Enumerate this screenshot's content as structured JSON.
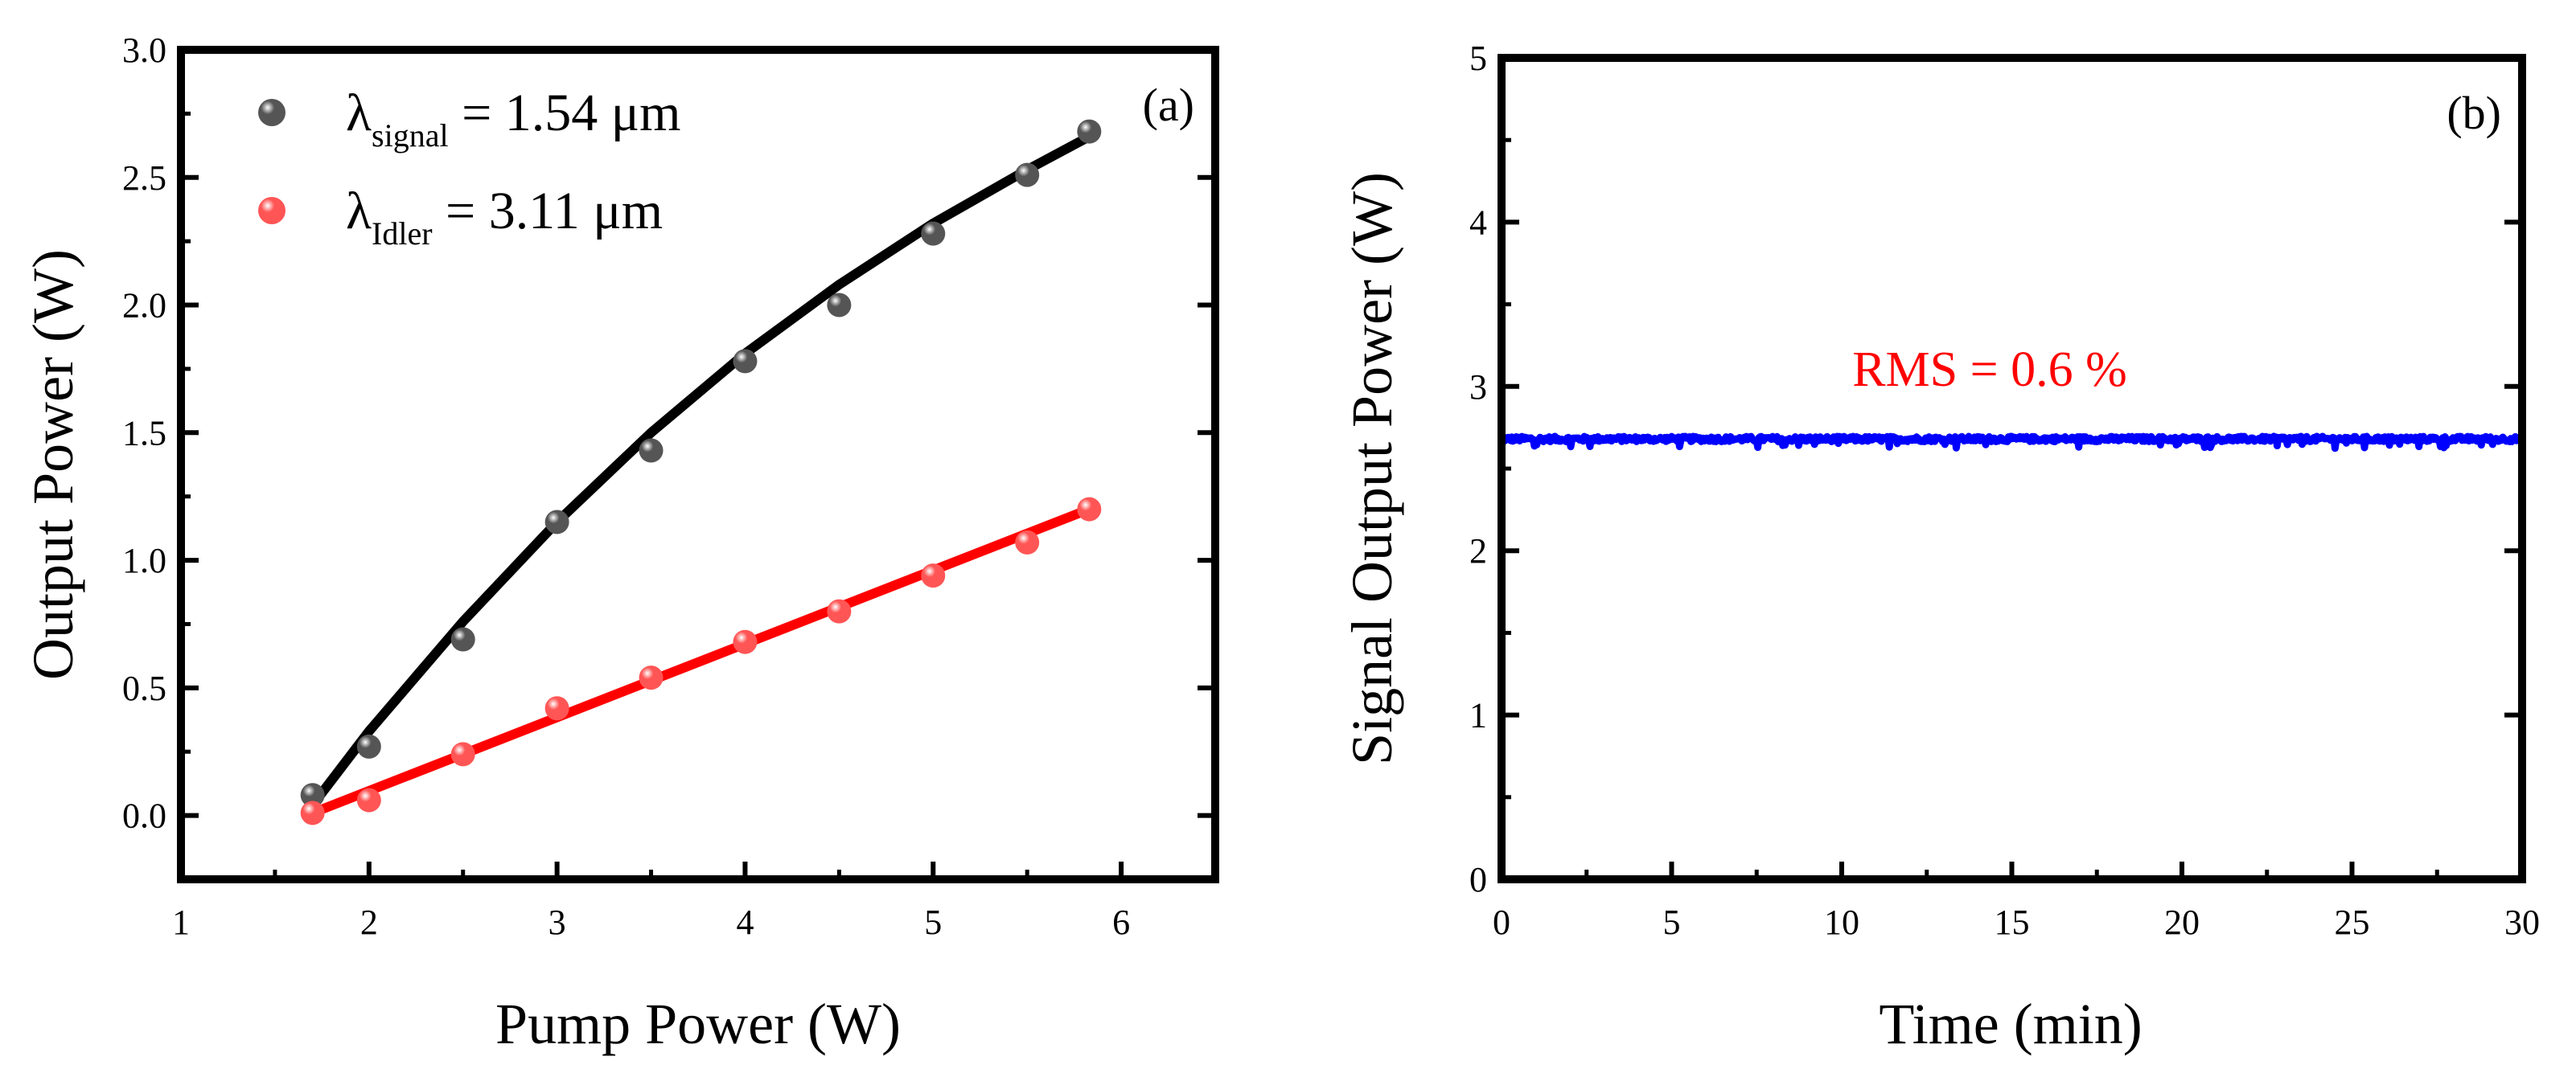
{
  "chart_data": [
    {
      "type": "scatter",
      "panel_label": "(a)",
      "xlabel": "Pump Power (W)",
      "ylabel": "Output Power (W)",
      "xlim": [
        1,
        6.5
      ],
      "ylim": [
        -0.25,
        3.0
      ],
      "xticks": [
        1,
        2,
        3,
        4,
        5,
        6
      ],
      "yticks": [
        0.0,
        0.5,
        1.0,
        1.5,
        2.0,
        2.5,
        3.0
      ],
      "xtick_labels": [
        "1",
        "2",
        "3",
        "4",
        "5",
        "6"
      ],
      "ytick_labels": [
        "0.0",
        "0.5",
        "1.0",
        "1.5",
        "2.0",
        "2.5",
        "3.0"
      ],
      "legend_position": "top-left",
      "series": [
        {
          "name": "λsignal = 1.54 μm",
          "legend": {
            "symbol": "λ",
            "subscript": "signal",
            "rest": " = 1.54 μm"
          },
          "color": "#000000",
          "marker_color": "#555555",
          "x": [
            1.7,
            2.0,
            2.5,
            3.0,
            3.5,
            4.0,
            4.5,
            5.0,
            5.5,
            5.83
          ],
          "y": [
            0.08,
            0.27,
            0.69,
            1.15,
            1.43,
            1.78,
            2.0,
            2.28,
            2.51,
            2.68
          ],
          "fit_x": [
            1.72,
            2.0,
            2.5,
            3.0,
            3.5,
            4.0,
            4.5,
            5.0,
            5.5,
            5.83
          ],
          "fit_y": [
            0.06,
            0.33,
            0.76,
            1.15,
            1.5,
            1.81,
            2.08,
            2.32,
            2.53,
            2.66
          ]
        },
        {
          "name": "λIdler = 3.11 μm",
          "legend": {
            "symbol": "λ",
            "subscript": "Idler",
            "rest": " = 3.11 μm"
          },
          "color": "#ff0000",
          "marker_color": "#ff5555",
          "x": [
            1.7,
            2.0,
            2.5,
            3.0,
            3.5,
            4.0,
            4.5,
            5.0,
            5.5,
            5.83
          ],
          "y": [
            0.01,
            0.06,
            0.24,
            0.42,
            0.54,
            0.68,
            0.8,
            0.94,
            1.07,
            1.2
          ],
          "fit_x": [
            1.7,
            5.83
          ],
          "fit_y": [
            0.01,
            1.2
          ]
        }
      ]
    },
    {
      "type": "line",
      "panel_label": "(b)",
      "xlabel": "Time (min)",
      "ylabel": "Signal Output Power (W)",
      "xlim": [
        0,
        30
      ],
      "ylim": [
        0,
        5
      ],
      "xticks": [
        0,
        5,
        10,
        15,
        20,
        25,
        30
      ],
      "yticks": [
        0,
        1,
        2,
        3,
        4,
        5
      ],
      "xtick_labels": [
        "0",
        "5",
        "10",
        "15",
        "20",
        "25",
        "30"
      ],
      "ytick_labels": [
        "0",
        "1",
        "2",
        "3",
        "4",
        "5"
      ],
      "annotation": "RMS = 0.6 %",
      "annotation_color": "#ff0000",
      "series": [
        {
          "name": "Signal output power",
          "color": "#0000ff",
          "mean": 2.68,
          "rms_percent": 0.6,
          "x_range": [
            0,
            30
          ]
        }
      ]
    }
  ]
}
